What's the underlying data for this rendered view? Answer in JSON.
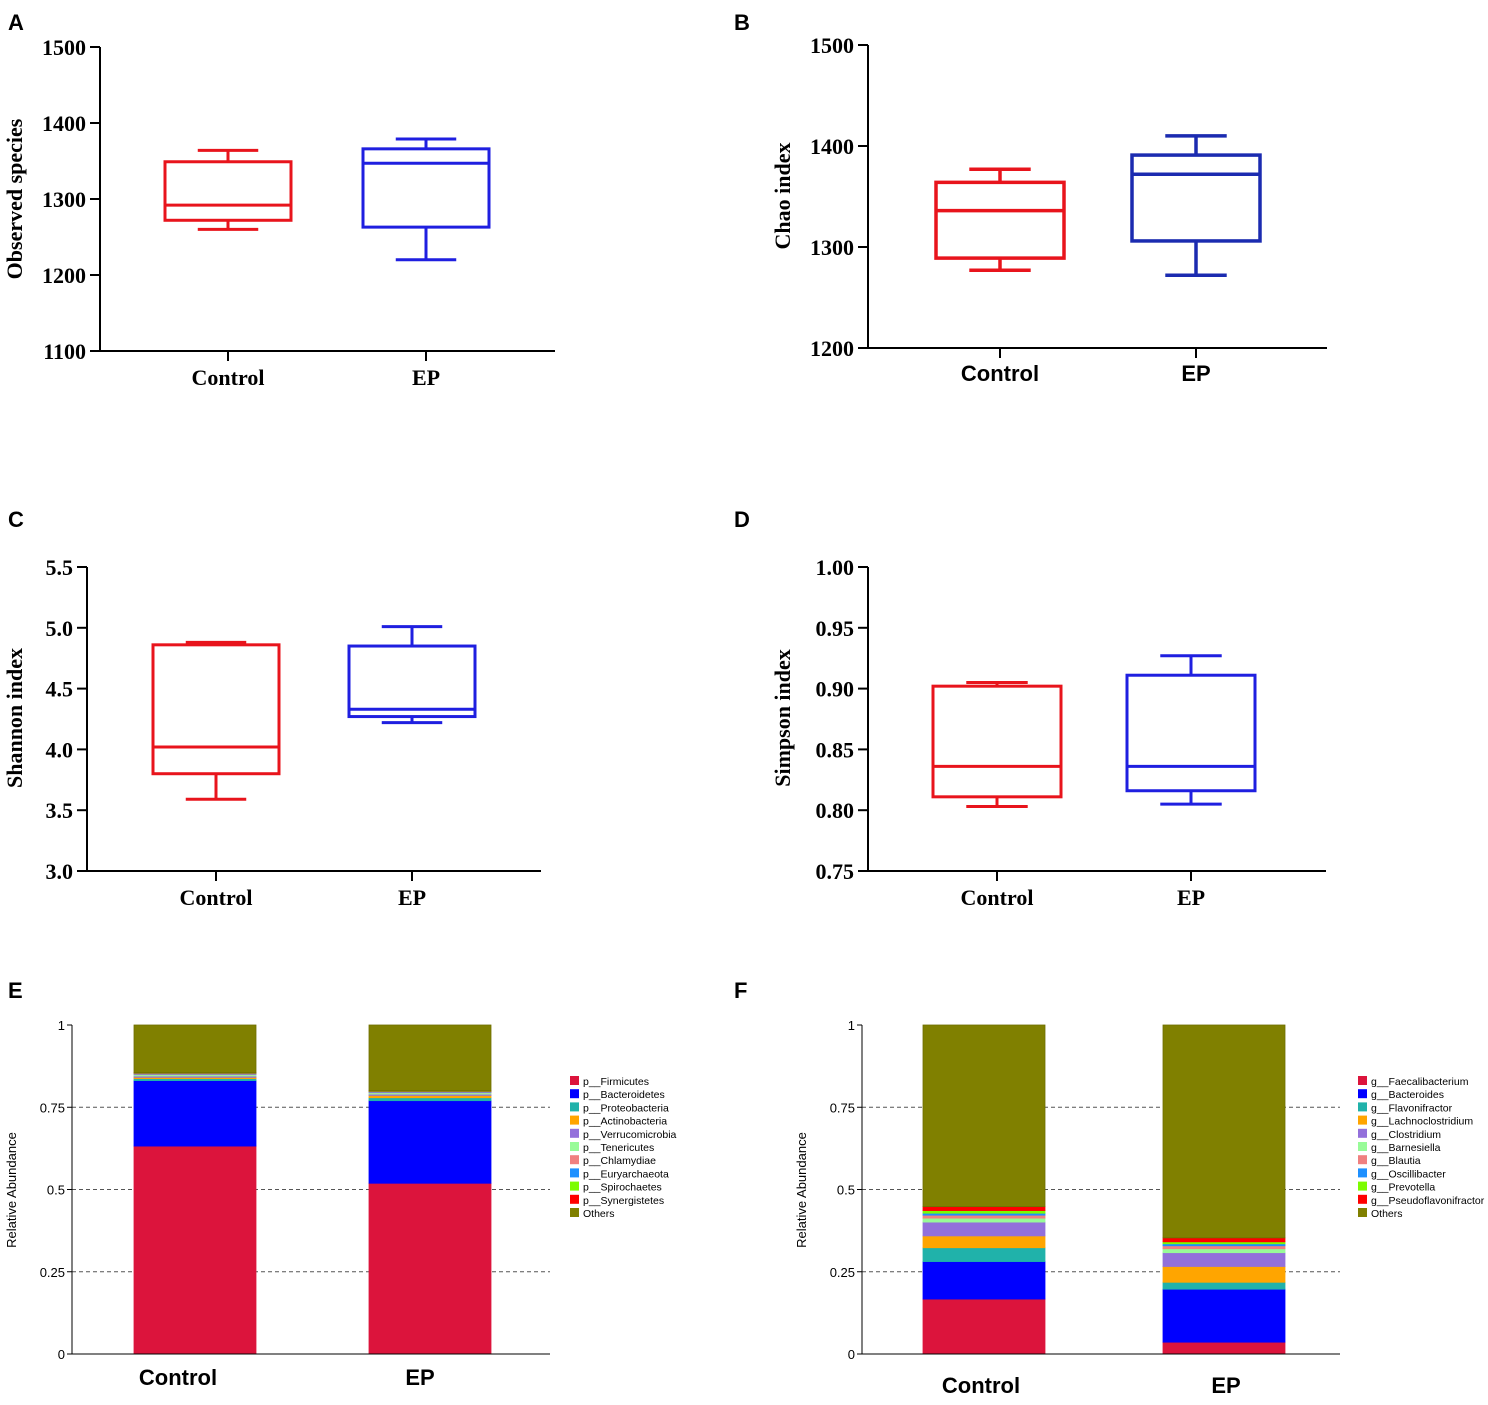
{
  "panels": [
    "A",
    "B",
    "C",
    "D",
    "E",
    "F"
  ],
  "colors": {
    "control": "#e8141c",
    "ep_light": "#1f1fe0",
    "ep_dark": "#1b2bb0",
    "axis": "#000000",
    "grid": "#555555"
  },
  "chart_data": [
    {
      "panel": "A",
      "type": "box",
      "ylabel": "Observed species",
      "ylim": [
        1100,
        1500
      ],
      "yticks": [
        "1100",
        "1200",
        "1300",
        "1400",
        "1500"
      ],
      "categories": [
        "Control",
        "EP"
      ],
      "series": [
        {
          "name": "Control",
          "whisker_low": 1260,
          "q1": 1272,
          "median": 1292,
          "q3": 1349,
          "whisker_high": 1364
        },
        {
          "name": "EP",
          "whisker_low": 1220,
          "q1": 1263,
          "median": 1347,
          "q3": 1366,
          "whisker_high": 1379
        }
      ]
    },
    {
      "panel": "B",
      "type": "box",
      "ylabel": "Chao index",
      "ylim": [
        1200,
        1500
      ],
      "yticks": [
        "1200",
        "1300",
        "1400",
        "1500"
      ],
      "categories": [
        "Control",
        "EP"
      ],
      "series": [
        {
          "name": "Control",
          "whisker_low": 1277,
          "q1": 1289,
          "median": 1336,
          "q3": 1364,
          "whisker_high": 1377
        },
        {
          "name": "EP",
          "whisker_low": 1272,
          "q1": 1306,
          "median": 1372,
          "q3": 1391,
          "whisker_high": 1410
        }
      ]
    },
    {
      "panel": "C",
      "type": "box",
      "ylabel": "Shannon index",
      "ylim": [
        3.0,
        5.5
      ],
      "yticks": [
        "3.0",
        "3.5",
        "4.0",
        "4.5",
        "5.0",
        "5.5"
      ],
      "categories": [
        "Control",
        "EP"
      ],
      "series": [
        {
          "name": "Control",
          "whisker_low": 3.59,
          "q1": 3.8,
          "median": 4.02,
          "q3": 4.86,
          "whisker_high": 4.88
        },
        {
          "name": "EP",
          "whisker_low": 4.22,
          "q1": 4.27,
          "median": 4.33,
          "q3": 4.85,
          "whisker_high": 5.01
        }
      ]
    },
    {
      "panel": "D",
      "type": "box",
      "ylabel": "Simpson index",
      "ylim": [
        0.75,
        1.0
      ],
      "yticks": [
        "0.75",
        "0.80",
        "0.85",
        "0.90",
        "0.95",
        "1.00"
      ],
      "categories": [
        "Control",
        "EP"
      ],
      "series": [
        {
          "name": "Control",
          "whisker_low": 0.803,
          "q1": 0.811,
          "median": 0.836,
          "q3": 0.902,
          "whisker_high": 0.905
        },
        {
          "name": "EP",
          "whisker_low": 0.805,
          "q1": 0.816,
          "median": 0.836,
          "q3": 0.911,
          "whisker_high": 0.927
        }
      ]
    },
    {
      "panel": "E",
      "type": "stacked-bar",
      "ylabel": "Relative Abundance",
      "ylim": [
        0,
        1
      ],
      "yticks": [
        "0",
        "0.25",
        "0.5",
        "0.75",
        "1"
      ],
      "gridlines": [
        0.25,
        0.5,
        0.75
      ],
      "categories": [
        "Control",
        "EP"
      ],
      "series": [
        {
          "name": "p__Firmicutes",
          "color": "#dc143c",
          "values": [
            0.632,
            0.519
          ]
        },
        {
          "name": "p__Bacteroidetes",
          "color": "#0000ff",
          "values": [
            0.199,
            0.251
          ]
        },
        {
          "name": "p__Proteobacteria",
          "color": "#20b2aa",
          "values": [
            0.006,
            0.009
          ]
        },
        {
          "name": "p__Actinobacteria",
          "color": "#ffa500",
          "values": [
            0.004,
            0.007
          ]
        },
        {
          "name": "p__Verrucomicrobia",
          "color": "#9370db",
          "values": [
            0.004,
            0.004
          ]
        },
        {
          "name": "p__Tenericutes",
          "color": "#98fb98",
          "values": [
            0.004,
            0.004
          ]
        },
        {
          "name": "p__Chlamydiae",
          "color": "#f08080",
          "values": [
            0.002,
            0.002
          ]
        },
        {
          "name": "p__Euryarchaeota",
          "color": "#1e90ff",
          "values": [
            0.002,
            0.002
          ]
        },
        {
          "name": "p__Spirochaetes",
          "color": "#7cfc00",
          "values": [
            0.001,
            0.001
          ]
        },
        {
          "name": "p__Synergistetes",
          "color": "#ff0000",
          "values": [
            0.001,
            0.001
          ]
        },
        {
          "name": "Others",
          "color": "#808000",
          "values": [
            0.145,
            0.2
          ]
        }
      ]
    },
    {
      "panel": "F",
      "type": "stacked-bar",
      "ylabel": "Relative Abundance",
      "ylim": [
        0,
        1
      ],
      "yticks": [
        "0",
        "0.25",
        "0.5",
        "0.75",
        "1"
      ],
      "gridlines": [
        0.25,
        0.5,
        0.75
      ],
      "categories": [
        "Control",
        "EP"
      ],
      "series": [
        {
          "name": "g__Faecalibacterium",
          "color": "#dc143c",
          "values": [
            0.167,
            0.036
          ]
        },
        {
          "name": "g__Bacteroides",
          "color": "#0000ff",
          "values": [
            0.114,
            0.161
          ]
        },
        {
          "name": "g__Flavonifractor",
          "color": "#20b2aa",
          "values": [
            0.042,
            0.021
          ]
        },
        {
          "name": "g__Lachnoclostridium",
          "color": "#ffa500",
          "values": [
            0.036,
            0.048
          ]
        },
        {
          "name": "g__Clostridium",
          "color": "#9370db",
          "values": [
            0.042,
            0.042
          ]
        },
        {
          "name": "g__Barnesiella",
          "color": "#98fb98",
          "values": [
            0.012,
            0.012
          ]
        },
        {
          "name": "g__Blautia",
          "color": "#f08080",
          "values": [
            0.009,
            0.009
          ]
        },
        {
          "name": "g__Oscillibacter",
          "color": "#1e90ff",
          "values": [
            0.006,
            0.006
          ]
        },
        {
          "name": "g__Prevotella",
          "color": "#7cfc00",
          "values": [
            0.008,
            0.006
          ]
        },
        {
          "name": "g__Pseudoflavonifractor",
          "color": "#ff0000",
          "values": [
            0.012,
            0.012
          ]
        },
        {
          "name": "Others",
          "color": "#808000",
          "values": [
            0.552,
            0.647
          ]
        }
      ]
    }
  ]
}
